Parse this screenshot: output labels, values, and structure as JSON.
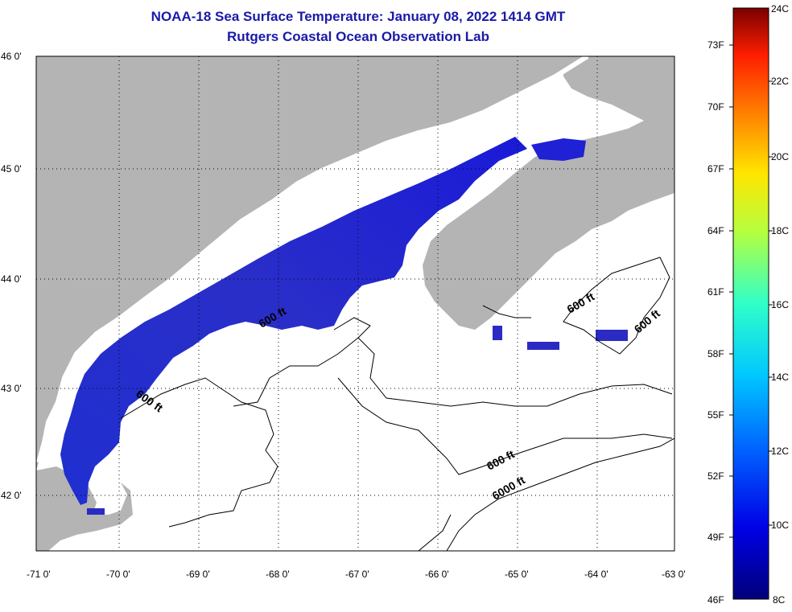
{
  "title": {
    "line1": "NOAA-18 Sea Surface Temperature:  January 08, 2022 1414 GMT",
    "line2": "Rutgers Coastal Ocean Observation Lab"
  },
  "lat_labels": [
    "46 0'",
    "45 0'",
    "44 0'",
    "43 0'",
    "42 0'"
  ],
  "lon_labels": [
    "-71 0'",
    "-70 0'",
    "-69 0'",
    "-68 0'",
    "-67 0'",
    "-66 0'",
    "-65 0'",
    "-64 0'",
    "-63 0'"
  ],
  "colorbar": {
    "fahrenheit": [
      "73F",
      "70F",
      "67F",
      "64F",
      "61F",
      "58F",
      "55F",
      "52F",
      "49F",
      "46F"
    ],
    "celsius": [
      "24C",
      "22C",
      "20C",
      "18C",
      "16C",
      "14C",
      "12C",
      "10C",
      "8C"
    ]
  },
  "contour_labels": [
    "600 ft",
    "600 ft",
    "600 ft",
    "600 ft",
    "600 ft",
    "6000 ft"
  ],
  "colors": {
    "land": "#b4b4b4",
    "cold_water": "#2626d0",
    "title": "#1a1aa8"
  }
}
